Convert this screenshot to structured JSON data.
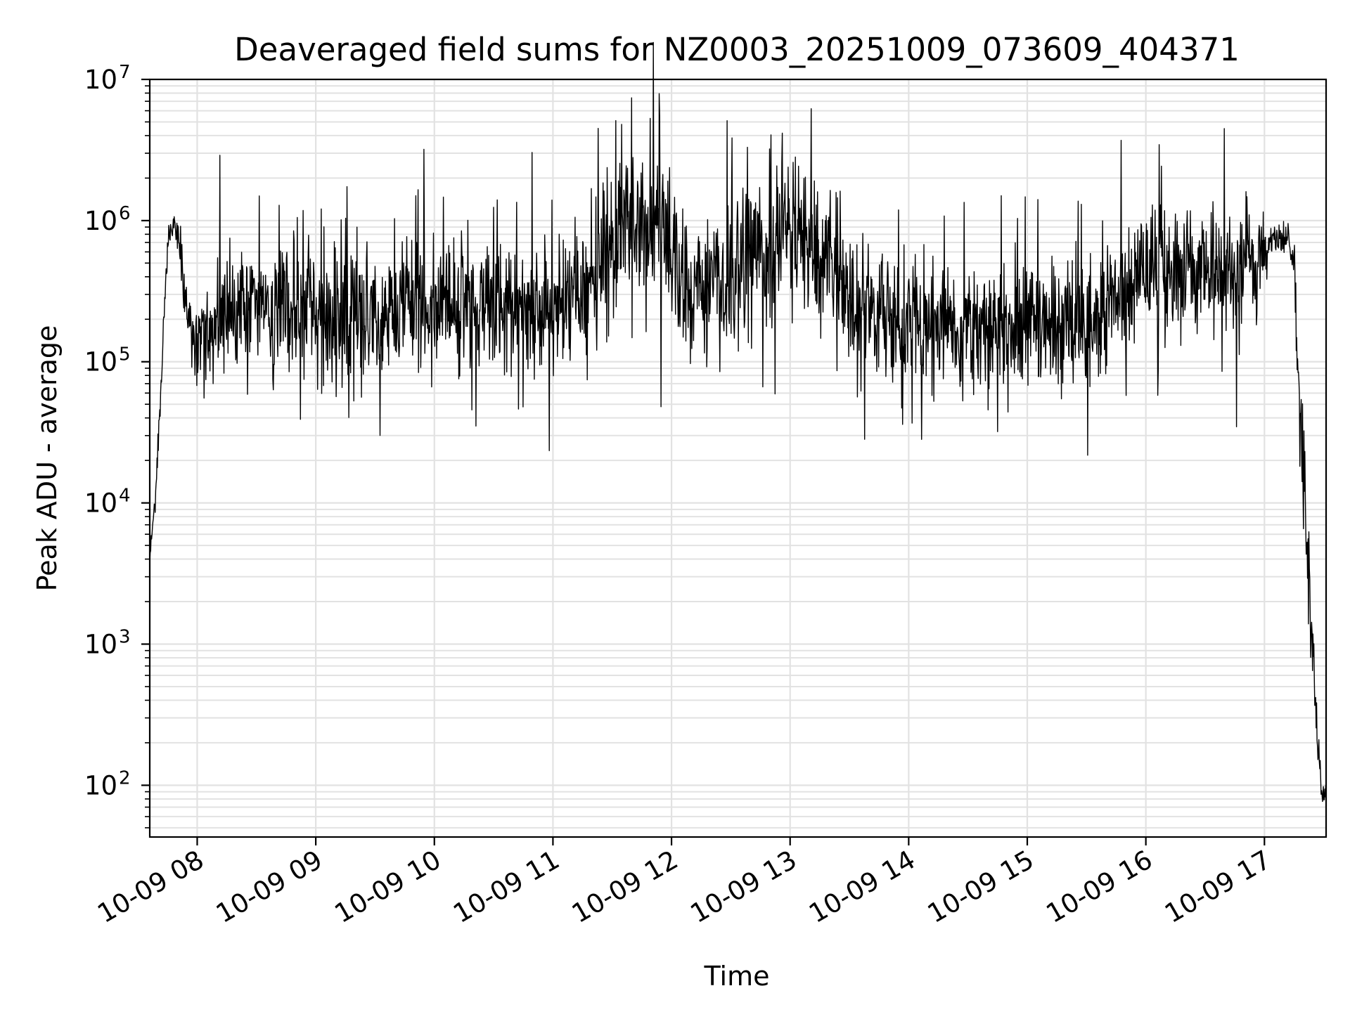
{
  "chart_data": {
    "type": "line",
    "title": "Deaveraged field sums for NZ0003_20251009_073609_404371",
    "xlabel": "Time",
    "ylabel": "Peak ADU - average",
    "yscale": "log",
    "ylim": [
      43,
      10000000
    ],
    "xlim_hours": [
      7.6,
      17.52
    ],
    "grid": true,
    "x_ticks": [
      {
        "value": 8,
        "label": "10-09 08"
      },
      {
        "value": 9,
        "label": "10-09 09"
      },
      {
        "value": 10,
        "label": "10-09 10"
      },
      {
        "value": 11,
        "label": "10-09 11"
      },
      {
        "value": 12,
        "label": "10-09 12"
      },
      {
        "value": 13,
        "label": "10-09 13"
      },
      {
        "value": 14,
        "label": "10-09 14"
      },
      {
        "value": 15,
        "label": "10-09 15"
      },
      {
        "value": 16,
        "label": "10-09 16"
      },
      {
        "value": 17,
        "label": "10-09 17"
      }
    ],
    "y_ticks": [
      {
        "value": 100,
        "base": "10",
        "exp": "2"
      },
      {
        "value": 1000,
        "base": "10",
        "exp": "3"
      },
      {
        "value": 10000,
        "base": "10",
        "exp": "4"
      },
      {
        "value": 100000,
        "base": "10",
        "exp": "5"
      },
      {
        "value": 1000000,
        "base": "10",
        "exp": "6"
      },
      {
        "value": 10000000,
        "base": "10",
        "exp": "7"
      }
    ],
    "series": [
      {
        "name": "Peak ADU - average",
        "color": "#000000",
        "generated": true,
        "note": "approximate envelope; dense noisy signal regenerated from these anchor levels",
        "anchors": [
          {
            "t": 7.6,
            "median": 4500,
            "spread": 0.05
          },
          {
            "t": 7.65,
            "median": 12000,
            "spread": 0.05
          },
          {
            "t": 7.7,
            "median": 80000,
            "spread": 0.05
          },
          {
            "t": 7.75,
            "median": 700000,
            "spread": 0.05
          },
          {
            "t": 7.8,
            "median": 950000,
            "spread": 0.05
          },
          {
            "t": 7.85,
            "median": 700000,
            "spread": 0.08
          },
          {
            "t": 7.9,
            "median": 250000,
            "spread": 0.12
          },
          {
            "t": 8.0,
            "median": 130000,
            "spread": 0.17
          },
          {
            "t": 8.2,
            "median": 220000,
            "spread": 0.22
          },
          {
            "t": 8.8,
            "median": 270000,
            "spread": 0.22
          },
          {
            "t": 9.5,
            "median": 220000,
            "spread": 0.22
          },
          {
            "t": 10.5,
            "median": 250000,
            "spread": 0.22
          },
          {
            "t": 11.3,
            "median": 300000,
            "spread": 0.24
          },
          {
            "t": 11.4,
            "median": 700000,
            "spread": 0.3
          },
          {
            "t": 11.85,
            "median": 1000000,
            "spread": 0.3
          },
          {
            "t": 12.1,
            "median": 300000,
            "spread": 0.24
          },
          {
            "t": 12.6,
            "median": 500000,
            "spread": 0.28
          },
          {
            "t": 13.0,
            "median": 1000000,
            "spread": 0.28
          },
          {
            "t": 13.3,
            "median": 500000,
            "spread": 0.26
          },
          {
            "t": 13.6,
            "median": 200000,
            "spread": 0.22
          },
          {
            "t": 14.5,
            "median": 180000,
            "spread": 0.22
          },
          {
            "t": 15.5,
            "median": 210000,
            "spread": 0.22
          },
          {
            "t": 16.0,
            "median": 450000,
            "spread": 0.22
          },
          {
            "t": 16.5,
            "median": 450000,
            "spread": 0.22
          },
          {
            "t": 17.0,
            "median": 450000,
            "spread": 0.22
          },
          {
            "t": 17.05,
            "median": 700000,
            "spread": 0.06
          },
          {
            "t": 17.2,
            "median": 750000,
            "spread": 0.05
          },
          {
            "t": 17.25,
            "median": 500000,
            "spread": 0.08
          },
          {
            "t": 17.28,
            "median": 100000,
            "spread": 0.1
          },
          {
            "t": 17.32,
            "median": 20000,
            "spread": 0.2
          },
          {
            "t": 17.36,
            "median": 5000,
            "spread": 0.2
          },
          {
            "t": 17.4,
            "median": 1000,
            "spread": 0.15
          },
          {
            "t": 17.45,
            "median": 250,
            "spread": 0.1
          },
          {
            "t": 17.48,
            "median": 90,
            "spread": 0.05
          },
          {
            "t": 17.52,
            "median": 85,
            "spread": 0.05
          }
        ],
        "spikes_up": [
          {
            "t": 8.19,
            "value": 2900000
          },
          {
            "t": 11.38,
            "value": 4500000
          },
          {
            "t": 11.58,
            "value": 4800000
          },
          {
            "t": 11.82,
            "value": 5300000
          },
          {
            "t": 11.9,
            "value": 5500000
          },
          {
            "t": 12.47,
            "value": 5100000
          },
          {
            "t": 13.18,
            "value": 6200000
          },
          {
            "t": 15.79,
            "value": 3700000
          }
        ],
        "spikes_down": [
          {
            "t": 10.35,
            "value": 35000
          },
          {
            "t": 11.91,
            "value": 48000
          },
          {
            "t": 13.95,
            "value": 36000
          },
          {
            "t": 14.75,
            "value": 32000
          }
        ]
      }
    ]
  }
}
